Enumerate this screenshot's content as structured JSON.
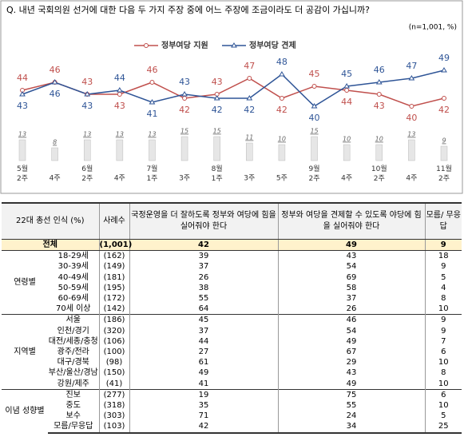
{
  "chart_data": {
    "type": "line",
    "title": "Q. 내년 국회의원 선거에 대한 다음 두 가지 주장 중에 어느 주장에 조금이라도 더 공감이 가십니까?",
    "note": "(n=1,001, %)",
    "categories": [
      "5월 2주",
      "4주",
      "6월 2주",
      "4주",
      "7월 1주",
      "3주",
      "8월 1주",
      "3주",
      "5주",
      "9월 2주",
      "4주",
      "10월 2주",
      "4주",
      "11월 2주"
    ],
    "series": [
      {
        "name": "정부여당 지원",
        "color": "#c0504d",
        "values": [
          44,
          46,
          43,
          43,
          46,
          42,
          43,
          47,
          42,
          45,
          44,
          43,
          40,
          42
        ]
      },
      {
        "name": "정부여당 견제",
        "color": "#2f5597",
        "values": [
          43,
          46,
          43,
          44,
          41,
          43,
          42,
          42,
          48,
          40,
          45,
          46,
          47,
          49
        ]
      }
    ],
    "bars": {
      "color": "#e6e6e6",
      "values": [
        13,
        8,
        13,
        13,
        13,
        15,
        15,
        11,
        10,
        15,
        10,
        10,
        13,
        9
      ]
    }
  },
  "table": {
    "header": [
      "22대 총선 인식 (%)",
      "사례수",
      "국정운영을 더 잘하도록 정부와 여당에 힘을 실어줘야 한다",
      "정부와 여당을 견제할 수 있도록 야당에 힘을 실어줘야 한다",
      "모름/ 무응답"
    ],
    "total": [
      "전체",
      "(1,001)",
      "42",
      "49",
      "9"
    ],
    "groups": [
      {
        "name": "연령별",
        "rows": [
          [
            "18-29세",
            "(162)",
            "39",
            "43",
            "18"
          ],
          [
            "30-39세",
            "(149)",
            "37",
            "54",
            "9"
          ],
          [
            "40-49세",
            "(181)",
            "26",
            "69",
            "5"
          ],
          [
            "50-59세",
            "(195)",
            "38",
            "58",
            "4"
          ],
          [
            "60-69세",
            "(172)",
            "55",
            "37",
            "8"
          ],
          [
            "70세 이상",
            "(142)",
            "64",
            "26",
            "10"
          ]
        ]
      },
      {
        "name": "지역별",
        "rows": [
          [
            "서울",
            "(186)",
            "45",
            "46",
            "9"
          ],
          [
            "인천/경기",
            "(320)",
            "37",
            "54",
            "9"
          ],
          [
            "대전/세종/충청",
            "(106)",
            "44",
            "49",
            "7"
          ],
          [
            "광주/전라",
            "(100)",
            "27",
            "67",
            "6"
          ],
          [
            "대구/경북",
            "(98)",
            "61",
            "29",
            "10"
          ],
          [
            "부산/울산/경남",
            "(150)",
            "49",
            "43",
            "8"
          ],
          [
            "강원/제주",
            "(41)",
            "41",
            "49",
            "10"
          ]
        ]
      },
      {
        "name": "이념 성향별",
        "rows": [
          [
            "진보",
            "(277)",
            "19",
            "75",
            "6"
          ],
          [
            "중도",
            "(318)",
            "35",
            "55",
            "10"
          ],
          [
            "보수",
            "(303)",
            "71",
            "24",
            "5"
          ],
          [
            "모름/무응답",
            "(103)",
            "42",
            "34",
            "25"
          ]
        ]
      }
    ]
  }
}
